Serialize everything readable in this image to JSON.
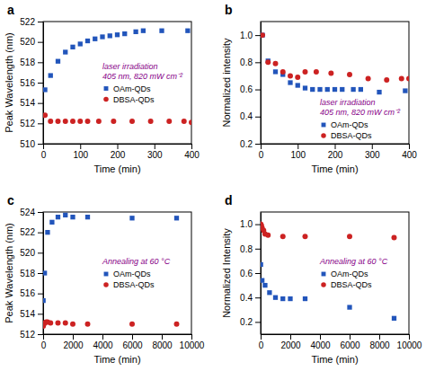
{
  "chart_data": [
    {
      "type": "scatter",
      "title": "a",
      "xlabel": "Time (min)",
      "ylabel": "Peak Wavelength (nm)",
      "xlim": [
        0,
        400
      ],
      "ylim": [
        510,
        522
      ],
      "xticks": [
        0,
        100,
        200,
        300,
        400
      ],
      "yticks": [
        510,
        512,
        514,
        516,
        518,
        520,
        522
      ],
      "grid": false,
      "legend": "right",
      "annotations": [
        {
          "text": "laser irradiation",
          "color": "#880088"
        },
        {
          "text": "405 nm, 820 mW cm⁻²",
          "color": "#880088"
        }
      ],
      "series": [
        {
          "name": "OAm-QDs",
          "color": "#2255bb",
          "marker": "square",
          "x": [
            5,
            20,
            40,
            60,
            80,
            100,
            120,
            140,
            160,
            180,
            200,
            220,
            250,
            270,
            320,
            390
          ],
          "values": [
            515.3,
            516.7,
            518.1,
            519.0,
            519.5,
            519.8,
            520.1,
            520.3,
            520.5,
            520.6,
            520.7,
            520.8,
            521.0,
            521.1,
            521.1,
            521.1
          ]
        },
        {
          "name": "DBSA-QDs",
          "color": "#cc2222",
          "marker": "circle",
          "x": [
            5,
            20,
            40,
            60,
            80,
            100,
            120,
            150,
            190,
            240,
            290,
            340,
            380,
            400
          ],
          "values": [
            512.8,
            512.2,
            512.2,
            512.2,
            512.2,
            512.2,
            512.2,
            512.2,
            512.2,
            512.2,
            512.2,
            512.2,
            512.2,
            512.1
          ]
        }
      ]
    },
    {
      "type": "scatter",
      "title": "b",
      "xlabel": "Time (min)",
      "ylabel": "Normalized intensity",
      "xlim": [
        0,
        400
      ],
      "ylim": [
        0.2,
        1.1
      ],
      "xticks": [
        0,
        100,
        200,
        300,
        400
      ],
      "yticks": [
        0.2,
        0.4,
        0.6,
        0.8,
        {
          "value": 1.0,
          "label": "1.0"
        }
      ],
      "grid": false,
      "legend": "lower right",
      "annotations": [
        {
          "text": "laser irradiation",
          "color": "#880088"
        },
        {
          "text": "405 nm, 820 mW cm⁻²",
          "color": "#880088"
        }
      ],
      "series": [
        {
          "name": "OAm-QDs",
          "color": "#2255bb",
          "marker": "square",
          "x": [
            5,
            20,
            40,
            60,
            80,
            100,
            120,
            140,
            160,
            180,
            200,
            220,
            250,
            270,
            320,
            390
          ],
          "values": [
            1.0,
            0.81,
            0.73,
            0.71,
            0.65,
            0.63,
            0.61,
            0.6,
            0.6,
            0.6,
            0.6,
            0.6,
            0.6,
            0.6,
            0.58,
            0.59
          ]
        },
        {
          "name": "DBSA-QDs",
          "color": "#cc2222",
          "marker": "circle",
          "x": [
            5,
            20,
            40,
            60,
            80,
            100,
            120,
            150,
            190,
            240,
            290,
            340,
            380,
            400
          ],
          "values": [
            1.0,
            0.8,
            0.79,
            0.73,
            0.7,
            0.69,
            0.73,
            0.73,
            0.72,
            0.71,
            0.68,
            0.67,
            0.68,
            0.68
          ]
        }
      ]
    },
    {
      "type": "scatter",
      "title": "c",
      "xlabel": "Time (min)",
      "ylabel": "Peak Wavelength (nm)",
      "xlim": [
        0,
        10000
      ],
      "ylim": [
        512,
        524
      ],
      "xticks": [
        0,
        2000,
        4000,
        6000,
        8000,
        10000
      ],
      "yticks": [
        512,
        514,
        516,
        518,
        520,
        522,
        524
      ],
      "grid": false,
      "legend": "right",
      "annotations": [
        {
          "text": "Annealing at 60 °C",
          "color": "#880088"
        }
      ],
      "series": [
        {
          "name": "OAm-QDs",
          "color": "#2255bb",
          "marker": "square",
          "x": [
            10,
            100,
            300,
            600,
            1000,
            1500,
            2000,
            3000,
            6000,
            9000
          ],
          "values": [
            515.3,
            518.0,
            522.0,
            523.0,
            523.5,
            523.7,
            523.5,
            523.5,
            523.4,
            523.4
          ]
        },
        {
          "name": "DBSA-QDs",
          "color": "#cc2222",
          "marker": "circle",
          "x": [
            10,
            50,
            100,
            200,
            300,
            500,
            1000,
            1500,
            2000,
            3000,
            6000,
            9000
          ],
          "values": [
            512.8,
            513.0,
            513.1,
            513.2,
            513.2,
            513.1,
            513.1,
            513.1,
            513.0,
            513.0,
            513.0,
            513.0
          ]
        }
      ]
    },
    {
      "type": "scatter",
      "title": "d",
      "xlabel": "Time (min)",
      "ylabel": "Normalized Intensity",
      "xlim": [
        0,
        10000
      ],
      "ylim": [
        0.1,
        1.1
      ],
      "xticks": [
        0,
        2000,
        4000,
        6000,
        8000,
        10000
      ],
      "yticks": [
        0.2,
        0.4,
        0.6,
        0.8,
        {
          "value": 1.0,
          "label": "1.0"
        }
      ],
      "grid": false,
      "legend": "right",
      "annotations": [
        {
          "text": "Annealing at 60 °C",
          "color": "#880088"
        }
      ],
      "series": [
        {
          "name": "OAm-QDs",
          "color": "#2255bb",
          "marker": "square",
          "x": [
            10,
            100,
            300,
            600,
            1000,
            1500,
            2000,
            3000,
            6000,
            9000
          ],
          "values": [
            0.67,
            0.54,
            0.5,
            0.44,
            0.4,
            0.39,
            0.39,
            0.39,
            0.32,
            0.23
          ]
        },
        {
          "name": "DBSA-QDs",
          "color": "#cc2222",
          "marker": "circle",
          "x": [
            10,
            50,
            100,
            200,
            300,
            500,
            1500,
            3000,
            6000,
            9000
          ],
          "values": [
            1.0,
            0.99,
            0.97,
            0.95,
            0.92,
            0.91,
            0.9,
            0.9,
            0.9,
            0.89
          ]
        }
      ]
    }
  ]
}
